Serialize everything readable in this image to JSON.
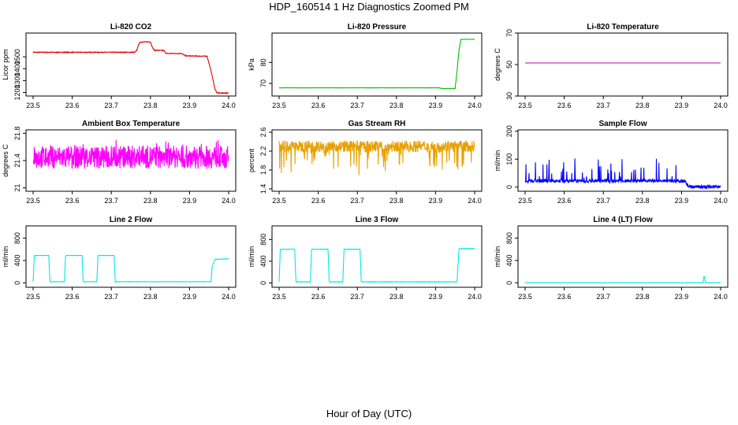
{
  "figure": {
    "title": "HDP_160514  1 Hz Diagnostics Zoomed PM",
    "xcaption": "Hour of Day (UTC)"
  },
  "chart_data": [
    {
      "type": "line",
      "title": "Li-820 CO2",
      "ylabel": "Licor ppm",
      "color": "#e00000",
      "xlim": [
        23.5,
        24.0
      ],
      "ylim": [
        1170,
        1700
      ],
      "xticks": [
        "23.5",
        "23.6",
        "23.7",
        "23.8",
        "23.9",
        "24.0"
      ],
      "yticks": [
        1200,
        1300,
        1400,
        1500
      ],
      "noise": 3,
      "spikes": 0,
      "x": [
        23.5,
        23.76,
        23.765,
        23.77,
        23.775,
        23.8,
        23.805,
        23.81,
        23.835,
        23.84,
        23.88,
        23.89,
        23.945,
        23.955,
        23.965,
        23.97,
        24.0
      ],
      "y": [
        1538,
        1538,
        1555,
        1605,
        1625,
        1625,
        1580,
        1555,
        1553,
        1528,
        1528,
        1508,
        1505,
        1380,
        1230,
        1195,
        1195
      ]
    },
    {
      "type": "line",
      "title": "Li-820 Pressure",
      "ylabel": "kPa",
      "color": "#00c000",
      "xlim": [
        23.5,
        24.0
      ],
      "ylim": [
        64,
        94
      ],
      "xticks": [
        "23.5",
        "23.6",
        "23.7",
        "23.8",
        "23.9",
        "24.0"
      ],
      "yticks": [
        70,
        80
      ],
      "noise": 0.05,
      "spikes": 0,
      "x": [
        23.5,
        23.91,
        23.915,
        23.95,
        23.955,
        23.96,
        23.965,
        24.0
      ],
      "y": [
        67.9,
        67.9,
        67.6,
        67.6,
        76,
        86,
        91,
        91
      ]
    },
    {
      "type": "line",
      "title": "Li-820 Temperature",
      "ylabel": "degrees C",
      "color": "#c000c0",
      "xlim": [
        23.5,
        24.0
      ],
      "ylim": [
        30,
        70
      ],
      "xticks": [
        "23.5",
        "23.6",
        "23.7",
        "23.8",
        "23.9",
        "24.0"
      ],
      "yticks": [
        30,
        50,
        70
      ],
      "noise": 0,
      "spikes": 0,
      "x": [
        23.5,
        24.0
      ],
      "y": [
        51,
        51
      ]
    },
    {
      "type": "line",
      "title": "Ambient Box Temperature",
      "ylabel": "degrees C",
      "color": "#ff00ff",
      "xlim": [
        23.5,
        24.0
      ],
      "ylim": [
        20.95,
        21.85
      ],
      "xticks": [
        "23.5",
        "23.6",
        "23.7",
        "23.8",
        "23.9",
        "24.0"
      ],
      "yticks": [
        21.0,
        21.4,
        21.8
      ],
      "noise": 0.17,
      "spikes": 0.1,
      "x": [
        23.5,
        24.0
      ],
      "y": [
        21.45,
        21.45
      ]
    },
    {
      "type": "line",
      "title": "Gas Stream RH",
      "ylabel": "percent",
      "color": "#e8a000",
      "xlim": [
        23.5,
        24.0
      ],
      "ylim": [
        1.35,
        2.65
      ],
      "xticks": [
        "23.5",
        "23.6",
        "23.7",
        "23.8",
        "23.9",
        "24.0"
      ],
      "yticks": [
        1.4,
        1.8,
        2.2,
        2.6
      ],
      "noise": 0.12,
      "spikes": -0.55,
      "x": [
        23.5,
        24.0
      ],
      "y": [
        2.3,
        2.3
      ]
    },
    {
      "type": "line",
      "title": "Sample Flow",
      "ylabel": "ml/min",
      "color": "#0000ff",
      "xlim": [
        23.5,
        24.0
      ],
      "ylim": [
        -15,
        205
      ],
      "xticks": [
        "23.5",
        "23.6",
        "23.7",
        "23.8",
        "23.9",
        "24.0"
      ],
      "yticks": [
        0,
        100,
        200
      ],
      "noise": 6,
      "spikes": 80,
      "x": [
        23.5,
        23.91,
        23.915,
        23.92,
        24.0
      ],
      "y": [
        22,
        22,
        8,
        1,
        1
      ]
    },
    {
      "type": "line",
      "title": "Line 2 Flow",
      "ylabel": "ml/min",
      "color": "#00e8e8",
      "xlim": [
        23.5,
        24.0
      ],
      "ylim": [
        -80,
        1020
      ],
      "xticks": [
        "23.5",
        "23.6",
        "23.7",
        "23.8",
        "23.9",
        "24.0"
      ],
      "yticks": [
        0,
        400,
        800
      ],
      "noise": 3,
      "spikes": 0,
      "x": [
        23.5,
        23.503,
        23.54,
        23.543,
        23.58,
        23.583,
        23.625,
        23.628,
        23.663,
        23.666,
        23.707,
        23.71,
        23.955,
        23.958,
        23.965,
        24.0
      ],
      "y": [
        20,
        490,
        490,
        20,
        20,
        490,
        490,
        20,
        20,
        490,
        490,
        20,
        20,
        300,
        420,
        430
      ]
    },
    {
      "type": "line",
      "title": "Line 3 Flow",
      "ylabel": "ml/min",
      "color": "#00e8e8",
      "xlim": [
        23.5,
        24.0
      ],
      "ylim": [
        -80,
        1050
      ],
      "xticks": [
        "23.5",
        "23.6",
        "23.7",
        "23.8",
        "23.9",
        "24.0"
      ],
      "yticks": [
        0,
        400,
        800
      ],
      "noise": 4,
      "spikes": 0,
      "x": [
        23.5,
        23.503,
        23.54,
        23.543,
        23.58,
        23.583,
        23.625,
        23.628,
        23.663,
        23.666,
        23.707,
        23.71,
        23.955,
        23.96,
        24.0
      ],
      "y": [
        20,
        620,
        620,
        20,
        20,
        620,
        620,
        20,
        20,
        620,
        620,
        20,
        20,
        630,
        630
      ]
    },
    {
      "type": "line",
      "title": "Line 4 (LT) Flow",
      "ylabel": "ml/min",
      "color": "#00e8e8",
      "xlim": [
        23.5,
        24.0
      ],
      "ylim": [
        -80,
        1020
      ],
      "xticks": [
        "23.5",
        "23.6",
        "23.7",
        "23.8",
        "23.9",
        "24.0"
      ],
      "yticks": [
        0,
        400,
        800
      ],
      "noise": 2,
      "spikes": 0,
      "x": [
        23.5,
        23.955,
        23.957,
        23.959,
        23.961,
        24.0
      ],
      "y": [
        0,
        0,
        110,
        110,
        0,
        0
      ]
    }
  ]
}
